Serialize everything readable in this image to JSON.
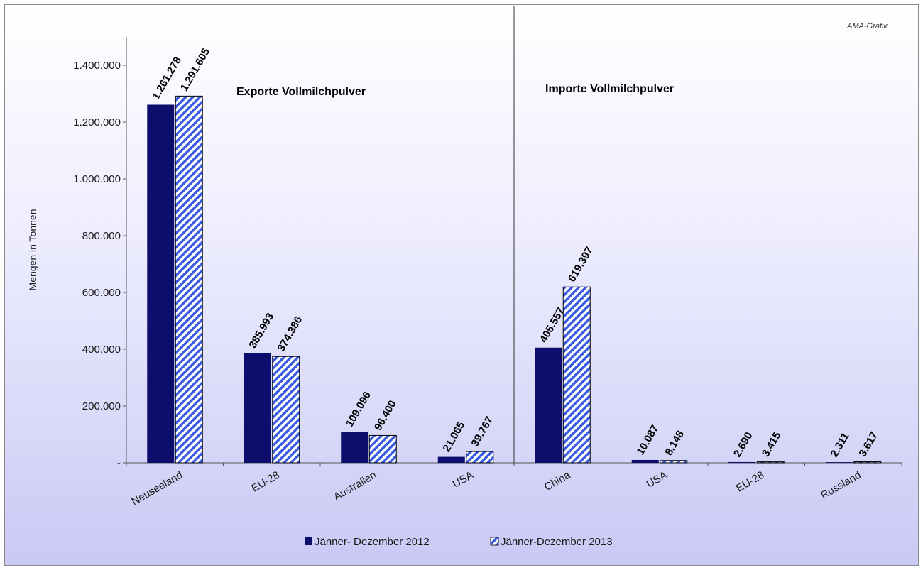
{
  "credit": "AMA-Grafik",
  "colors": {
    "series_2012": "#0d0d6e",
    "series_2013_stripe": "#3a5ce0",
    "series_2013_bg": "#ffffff"
  },
  "chart_data": {
    "type": "bar",
    "title": "",
    "ylabel": "Mengen in Tonnen",
    "xlabel": "",
    "ylim": [
      0,
      1500000
    ],
    "yticks": [
      0,
      200000,
      400000,
      600000,
      800000,
      1000000,
      1200000,
      1400000
    ],
    "ytick_labels": [
      "-",
      "200.000",
      "400.000",
      "600.000",
      "800.000",
      "1.000.000",
      "1.200.000",
      "1.400.000"
    ],
    "legend_position": "bottom",
    "grid": false,
    "sections": [
      {
        "title": "Exporte Vollmilchpulver",
        "categories": [
          "Neuseeland",
          "EU-28",
          "Australien",
          "USA"
        ]
      },
      {
        "title": "Importe Vollmilchpulver",
        "categories": [
          "China",
          "USA",
          "EU-28",
          "Russland"
        ]
      }
    ],
    "categories": [
      "Neuseeland",
      "EU-28",
      "Australien",
      "USA",
      "China",
      "USA",
      "EU-28",
      "Russland"
    ],
    "series": [
      {
        "name": "Jänner- Dezember 2012",
        "values": [
          1261278,
          385993,
          109096,
          21065,
          405557,
          10087,
          2690,
          2311
        ],
        "labels": [
          "1.261.278",
          "385.993",
          "109.096",
          "21.065",
          "405.557",
          "10.087",
          "2.690",
          "2.311"
        ]
      },
      {
        "name": "Jänner-Dezember 2013",
        "values": [
          1291605,
          374386,
          96400,
          39767,
          619397,
          8148,
          3415,
          3617
        ],
        "labels": [
          "1.291.605",
          "374.386",
          "96.400",
          "39.767",
          "619.397",
          "8.148",
          "3.415",
          "3.617"
        ]
      }
    ]
  }
}
